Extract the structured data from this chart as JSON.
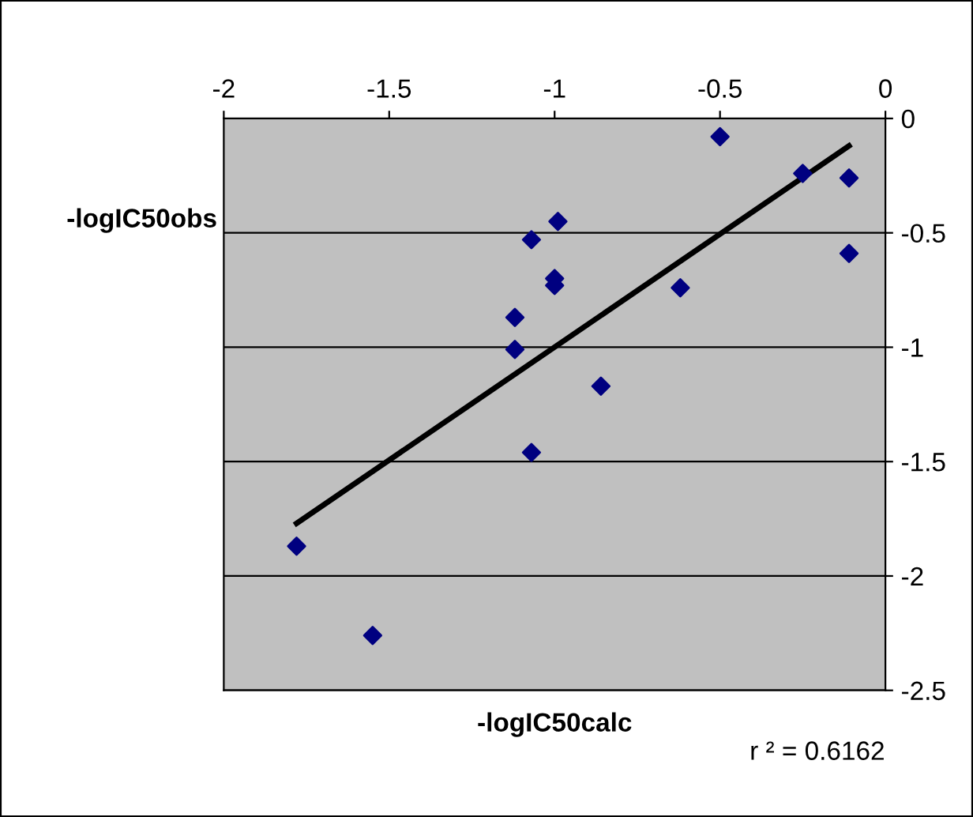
{
  "chart_data": {
    "type": "scatter",
    "xlabel": "-logIC50calc",
    "ylabel": "-logIC50obs",
    "annotations": [
      "r ² = 0.6162"
    ],
    "xlim": [
      -2,
      0
    ],
    "ylim": [
      -2.5,
      0
    ],
    "xticks": [
      -2,
      -1.5,
      -1,
      -0.5,
      0
    ],
    "yticks": [
      -2.5,
      -2,
      -1.5,
      -1,
      -0.5,
      0
    ],
    "grid": "y",
    "legend": false,
    "marker": "diamond",
    "series": [
      {
        "color": "#000080",
        "x": [
          -0.5,
          -0.25,
          -0.11,
          -0.11,
          -0.99,
          -1.07,
          -1.0,
          -1.0,
          -0.62,
          -1.12,
          -1.12,
          -0.86,
          -1.07,
          -1.78,
          -1.55
        ],
        "values": [
          -0.08,
          -0.24,
          -0.26,
          -0.59,
          -0.45,
          -0.53,
          -0.7,
          -0.73,
          -0.74,
          -0.87,
          -1.01,
          -1.17,
          -1.46,
          -1.87,
          -2.26
        ]
      },
      {
        "type": "line",
        "color": "#000000",
        "marker": "none",
        "line_style": "solid",
        "x": [
          -1.78,
          -0.11
        ],
        "values": [
          -1.77,
          -0.12
        ]
      }
    ]
  }
}
